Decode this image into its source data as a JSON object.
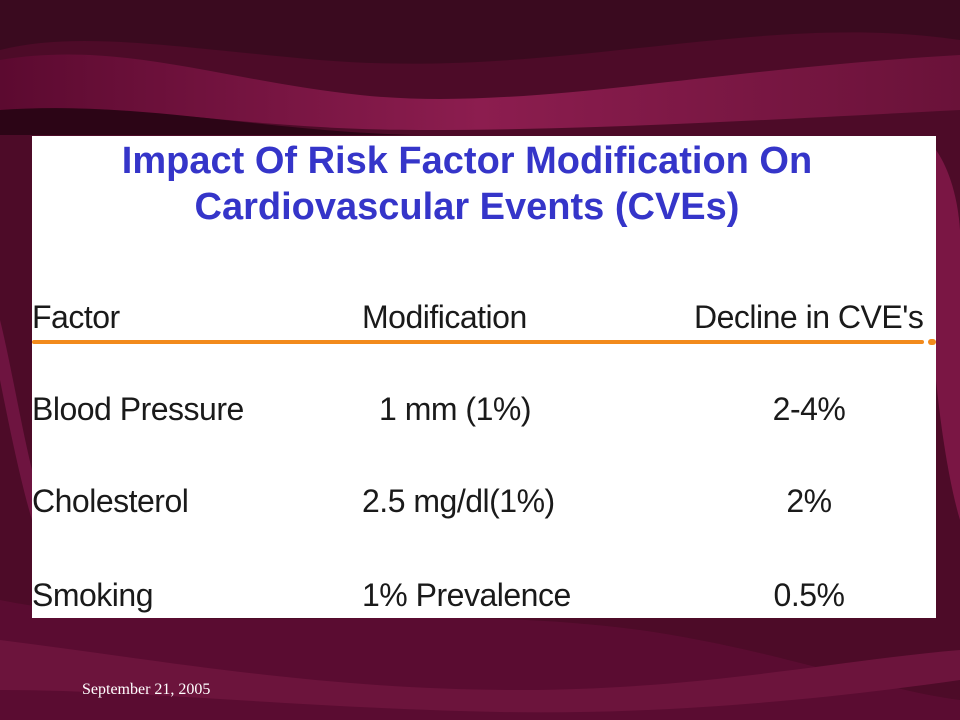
{
  "slide": {
    "title_line1": "Impact Of Risk Factor Modification On",
    "title_line2": "Cardiovascular Events (CVEs)",
    "table": {
      "headers": [
        "Factor",
        "Modification",
        "Decline in CVE's"
      ],
      "rows": [
        [
          "Blood Pressure",
          "1 mm (1%)",
          "2-4%"
        ],
        [
          "Cholesterol",
          "2.5 mg/dl(1%)",
          "2%"
        ],
        [
          "Smoking",
          "1% Prevalence",
          "0.5%"
        ]
      ]
    }
  },
  "footer": {
    "date": "September 21, 2005"
  },
  "colors": {
    "background": "#4a0a26",
    "wave_light": "#8a1a4e",
    "title": "#3535c9",
    "rule": "#f28a1c"
  }
}
